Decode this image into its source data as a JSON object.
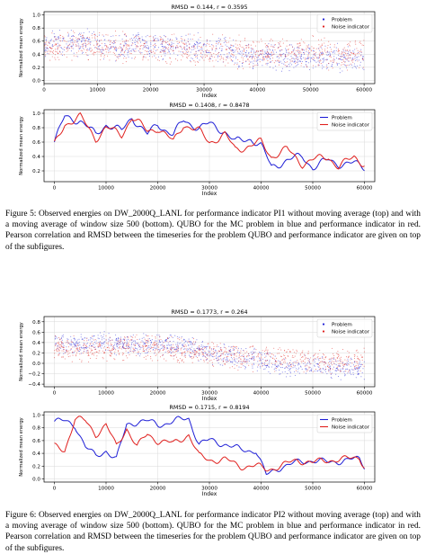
{
  "figure5": {
    "top": {
      "title": "RMSD = 0.144,  r = 0.3595",
      "ylabel": "Normalized mean energy",
      "xlabel": "Index",
      "yticks": [
        "0.0",
        "0.2",
        "0.4",
        "0.6",
        "0.8",
        "1.0"
      ],
      "xticks": [
        "0",
        "10000",
        "20000",
        "30000",
        "40000",
        "50000",
        "60000"
      ],
      "legend": [
        "Problem",
        "Noise indicator"
      ]
    },
    "bottom": {
      "title": "RMSD = 0.1408,  r = 0.8478",
      "ylabel": "Normalized mean energy",
      "xlabel": "Index",
      "yticks": [
        "0.2",
        "0.4",
        "0.6",
        "0.8",
        "1.0"
      ],
      "xticks": [
        "0",
        "10000",
        "20000",
        "30000",
        "40000",
        "50000",
        "60000"
      ],
      "legend": [
        "Problem",
        "Noise indicator"
      ]
    },
    "caption": "Figure 5: Observed energies on DW_2000Q_LANL for performance indicator PI1 without moving average (top) and with a moving average of window size 500 (bottom). QUBO for the MC problem in blue and performance indicator in red. Pearson correlation and RMSD between the timeseries for the problem QUBO and performance indicator are given on top of the subfigures."
  },
  "figure6": {
    "top": {
      "title": "RMSD = 0.1773,  r = 0.264",
      "ylabel": "Normalized mean energy",
      "xlabel": "Index",
      "yticks": [
        "−0.4",
        "−0.2",
        "0.0",
        "0.2",
        "0.4",
        "0.6",
        "0.8"
      ],
      "xticks": [
        "0",
        "10000",
        "20000",
        "30000",
        "40000",
        "50000",
        "60000"
      ],
      "legend": [
        "Problem",
        "Noise indicator"
      ]
    },
    "bottom": {
      "title": "RMSD = 0.1715,  r = 0.8194",
      "ylabel": "Normalized mean energy",
      "xlabel": "Index",
      "yticks": [
        "0.0",
        "0.2",
        "0.4",
        "0.6",
        "0.8",
        "1.0"
      ],
      "xticks": [
        "0",
        "10000",
        "20000",
        "30000",
        "40000",
        "50000",
        "60000"
      ],
      "legend": [
        "Problem",
        "Noise indicator"
      ]
    },
    "caption": "Figure 6: Observed energies on DW_2000Q_LANL for performance indicator PI2 without moving average (top) and with a moving average of window size 500 (bottom). QUBO for the MC problem in blue and performance indicator in red. Pearson correlation and RMSD between the timeseries for the problem QUBO and performance indicator are given on top of the subfigures."
  },
  "colors": {
    "problem": "#1f1fd6",
    "noise": "#e0201e"
  },
  "chart_data": [
    {
      "type": "scatter",
      "title": "RMSD = 0.144,  r = 0.3595",
      "xlabel": "Index",
      "ylabel": "Normalized mean energy",
      "xlim": [
        0,
        62000
      ],
      "ylim": [
        -0.05,
        1.05
      ],
      "series": [
        {
          "name": "Problem",
          "x": [
            0,
            5000,
            10000,
            15000,
            20000,
            25000,
            30000,
            35000,
            40000,
            45000,
            50000,
            55000,
            60000
          ],
          "values": [
            0.55,
            0.6,
            0.55,
            0.5,
            0.55,
            0.5,
            0.5,
            0.45,
            0.35,
            0.35,
            0.35,
            0.35,
            0.3
          ]
        },
        {
          "name": "Noise indicator",
          "x": [
            0,
            5000,
            10000,
            15000,
            20000,
            25000,
            30000,
            35000,
            40000,
            45000,
            50000,
            55000,
            60000
          ],
          "values": [
            0.5,
            0.55,
            0.5,
            0.5,
            0.5,
            0.5,
            0.45,
            0.45,
            0.4,
            0.45,
            0.45,
            0.4,
            0.4
          ]
        }
      ]
    },
    {
      "type": "line",
      "title": "RMSD = 0.1408,  r = 0.8478",
      "xlabel": "Index",
      "ylabel": "Normalized mean energy",
      "xlim": [
        -2000,
        62000
      ],
      "ylim": [
        0.05,
        1.05
      ],
      "series": [
        {
          "name": "Problem",
          "x": [
            0,
            2000,
            5000,
            8000,
            10000,
            13000,
            15000,
            18000,
            20000,
            23000,
            25000,
            28000,
            30000,
            33000,
            35000,
            38000,
            40000,
            42000,
            45000,
            48000,
            50000,
            53000,
            55000,
            58000,
            60000
          ],
          "values": [
            0.6,
            0.95,
            0.9,
            0.7,
            0.85,
            0.75,
            0.95,
            0.7,
            0.85,
            0.7,
            0.9,
            0.8,
            0.85,
            0.75,
            0.6,
            0.65,
            0.55,
            0.25,
            0.35,
            0.4,
            0.25,
            0.35,
            0.3,
            0.3,
            0.25
          ]
        },
        {
          "name": "Noise indicator",
          "x": [
            0,
            2000,
            5000,
            8000,
            10000,
            13000,
            15000,
            18000,
            20000,
            23000,
            25000,
            28000,
            30000,
            33000,
            35000,
            38000,
            40000,
            42000,
            45000,
            48000,
            50000,
            53000,
            55000,
            58000,
            60000
          ],
          "values": [
            0.55,
            0.85,
            0.95,
            0.65,
            0.8,
            0.7,
            0.95,
            0.75,
            0.8,
            0.6,
            0.85,
            0.75,
            0.6,
            0.7,
            0.5,
            0.55,
            0.6,
            0.4,
            0.5,
            0.3,
            0.35,
            0.4,
            0.25,
            0.4,
            0.3
          ]
        }
      ]
    },
    {
      "type": "scatter",
      "title": "RMSD = 0.1773,  r = 0.264",
      "xlabel": "Index",
      "ylabel": "Normalized mean energy",
      "xlim": [
        -2000,
        62000
      ],
      "ylim": [
        -0.45,
        0.9
      ],
      "series": [
        {
          "name": "Problem",
          "x": [
            0,
            5000,
            10000,
            15000,
            20000,
            25000,
            30000,
            35000,
            40000,
            45000,
            50000,
            55000,
            60000
          ],
          "values": [
            0.4,
            0.35,
            0.4,
            0.35,
            0.35,
            0.35,
            0.2,
            0.15,
            0.05,
            -0.1,
            -0.05,
            -0.1,
            -0.1
          ]
        },
        {
          "name": "Noise indicator",
          "x": [
            0,
            5000,
            10000,
            15000,
            20000,
            25000,
            30000,
            35000,
            40000,
            45000,
            50000,
            55000,
            60000
          ],
          "values": [
            0.3,
            0.25,
            0.3,
            0.3,
            0.3,
            0.25,
            0.2,
            0.15,
            0.1,
            0.1,
            0.05,
            0.05,
            0.05
          ]
        }
      ]
    },
    {
      "type": "line",
      "title": "RMSD = 0.1715,  r = 0.8194",
      "xlabel": "Index",
      "ylabel": "Normalized mean energy",
      "xlim": [
        -2000,
        62000
      ],
      "ylim": [
        -0.05,
        1.05
      ],
      "series": [
        {
          "name": "Problem",
          "x": [
            0,
            2000,
            4000,
            6000,
            8000,
            10000,
            12000,
            14000,
            16000,
            18000,
            20000,
            23000,
            26000,
            28000,
            30000,
            33000,
            36000,
            39000,
            41000,
            44000,
            47000,
            50000,
            53000,
            56000,
            59000,
            60000
          ],
          "values": [
            0.9,
            0.9,
            0.85,
            0.5,
            0.35,
            0.45,
            0.3,
            0.85,
            0.9,
            0.9,
            0.85,
            0.9,
            0.95,
            0.55,
            0.6,
            0.55,
            0.45,
            0.45,
            0.05,
            0.2,
            0.25,
            0.3,
            0.25,
            0.3,
            0.3,
            0.2
          ]
        },
        {
          "name": "Noise indicator",
          "x": [
            0,
            2000,
            4000,
            6000,
            8000,
            10000,
            12000,
            14000,
            16000,
            18000,
            20000,
            23000,
            26000,
            28000,
            30000,
            33000,
            36000,
            39000,
            41000,
            44000,
            47000,
            50000,
            53000,
            56000,
            59000,
            60000
          ],
          "values": [
            0.5,
            0.45,
            0.95,
            0.9,
            0.7,
            0.85,
            0.5,
            0.8,
            0.5,
            0.7,
            0.6,
            0.55,
            0.7,
            0.35,
            0.3,
            0.3,
            0.2,
            0.2,
            0.15,
            0.2,
            0.3,
            0.25,
            0.3,
            0.3,
            0.35,
            0.2
          ]
        }
      ]
    }
  ]
}
